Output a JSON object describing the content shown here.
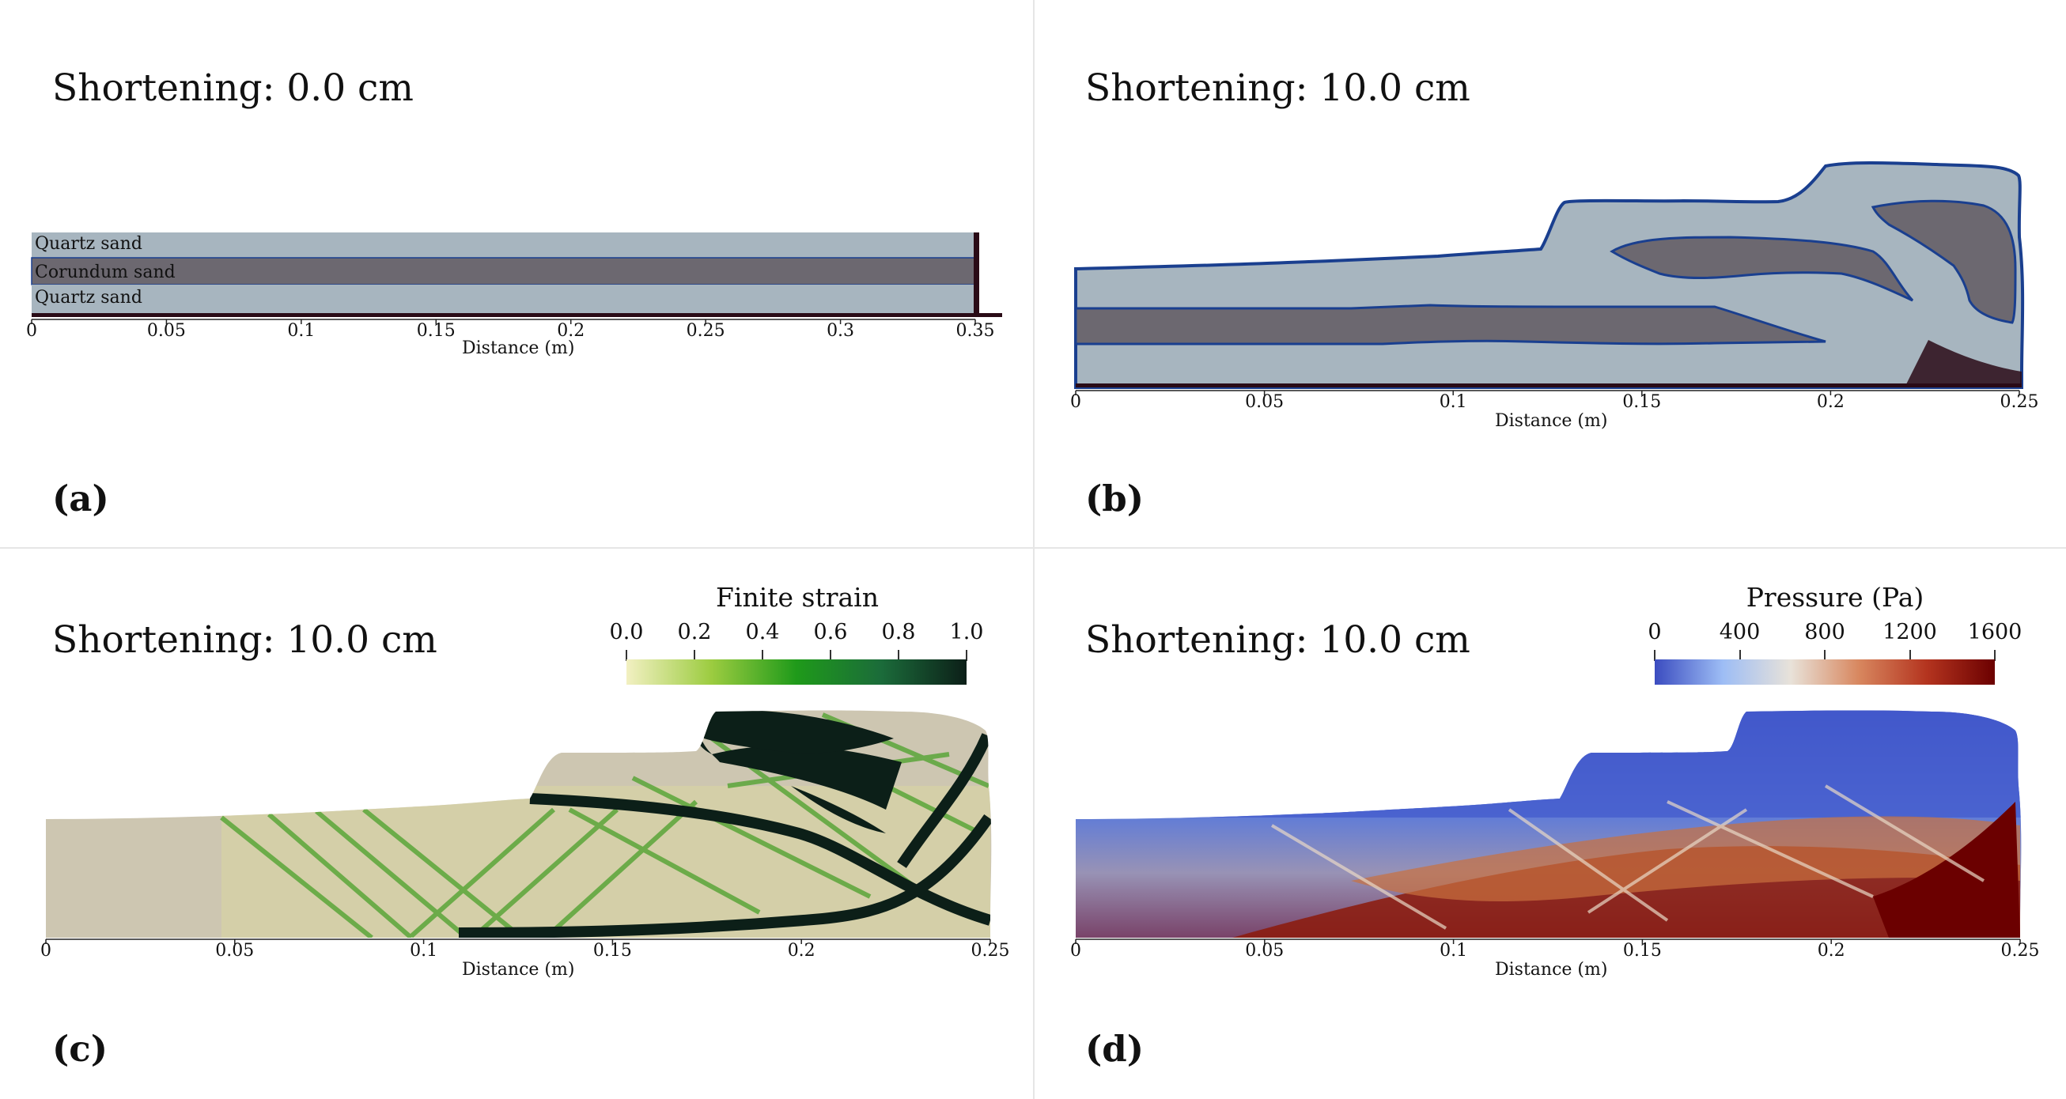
{
  "panels": [
    {
      "id": "a",
      "title": "Shortening: 0.0 cm",
      "label": "(a)",
      "layers": [
        "Quartz sand",
        "Corundum sand",
        "Quartz sand"
      ],
      "x_ticks": [
        "0",
        "0.05",
        "0.1",
        "0.15",
        "0.2",
        "0.25",
        "0.3",
        "0.35"
      ],
      "x_label": "Distance (m)"
    },
    {
      "id": "b",
      "title": "Shortening: 10.0 cm",
      "label": "(b)",
      "x_ticks": [
        "0",
        "0.05",
        "0.1",
        "0.15",
        "0.2",
        "0.25"
      ],
      "x_label": "Distance (m)"
    },
    {
      "id": "c",
      "title": "Shortening: 10.0 cm",
      "label": "(c)",
      "x_ticks": [
        "0",
        "0.05",
        "0.1",
        "0.15",
        "0.2",
        "0.25"
      ],
      "x_label": "Distance (m)",
      "colorbar": {
        "title": "Finite strain",
        "ticks": [
          "0.0",
          "0.2",
          "0.4",
          "0.6",
          "0.8",
          "1.0"
        ],
        "colors": [
          "#f2f0c2",
          "#9ccc40",
          "#1f9a1a",
          "#1b6b3a",
          "#0c1f18"
        ]
      }
    },
    {
      "id": "d",
      "title": "Shortening: 10.0 cm",
      "label": "(d)",
      "x_ticks": [
        "0",
        "0.05",
        "0.1",
        "0.15",
        "0.2",
        "0.25"
      ],
      "x_label": "Distance (m)",
      "colorbar": {
        "title": "Pressure (Pa)",
        "ticks": [
          "0",
          "400",
          "800",
          "1200",
          "1600"
        ],
        "colors": [
          "#3b4cc0",
          "#9dbdf5",
          "#e8e2d9",
          "#d8875f",
          "#b4341f",
          "#6b0000"
        ]
      }
    }
  ],
  "colors": {
    "quartz": "#a7b5bf",
    "corundum": "#6c6870",
    "basal": "#2a0b16",
    "outline": "#1a3f8f",
    "sand_plain": "#cdc6b1"
  }
}
